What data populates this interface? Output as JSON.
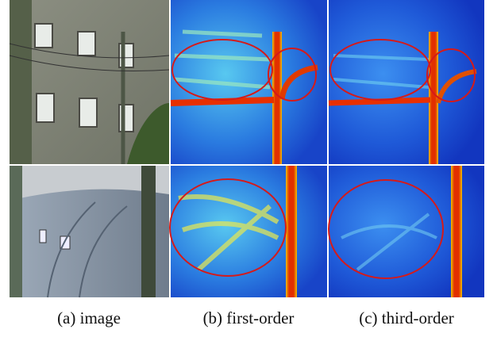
{
  "captions": [
    "(a) image",
    "(b) first-order",
    "(c) third-order"
  ]
}
